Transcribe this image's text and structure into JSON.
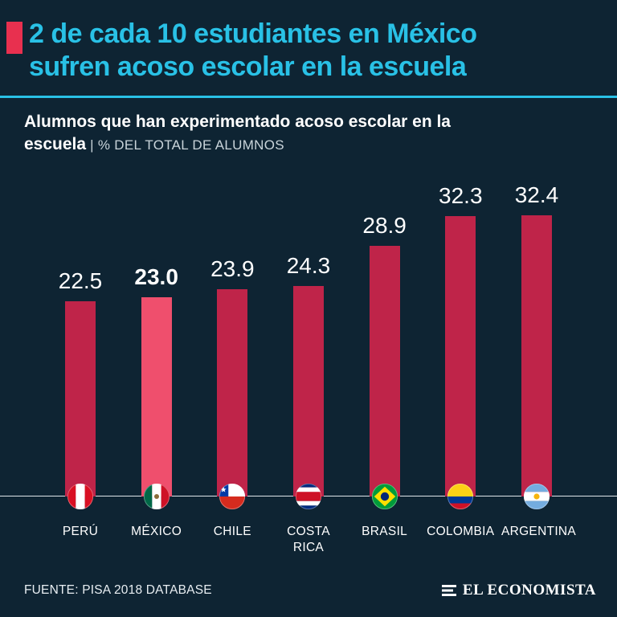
{
  "header": {
    "title": "2 de cada 10 estudiantes en México\nsufren acoso escolar en la escuela",
    "subtitle_bold": "Alumnos que han experimentado acoso escolar en la\nescuela",
    "subtitle_sep": " | ",
    "subtitle_light": "% DEL TOTAL DE ALUMNOS",
    "accent_color": "#29c1e6",
    "bullet_color": "#e8304f"
  },
  "chart_data": {
    "type": "bar",
    "title": "Alumnos que han experimentado acoso escolar en la escuela",
    "ylabel": "% del total de alumnos",
    "categories": [
      "PERÚ",
      "MÉXICO",
      "CHILE",
      "COSTA RICA",
      "BRASIL",
      "COLOMBIA",
      "ARGENTINA"
    ],
    "values": [
      22.5,
      23.0,
      23.9,
      24.3,
      28.9,
      32.3,
      32.4
    ],
    "value_labels": [
      "22.5",
      "23.0",
      "23.9",
      "24.3",
      "28.9",
      "32.3",
      "32.4"
    ],
    "highlighted_index": 1,
    "highlighted_category": "MÉXICO",
    "flags": [
      "peru-flag-icon",
      "mexico-flag-icon",
      "chile-flag-icon",
      "costa-rica-flag-icon",
      "brasil-flag-icon",
      "colombia-flag-icon",
      "argentina-flag-icon"
    ],
    "bar_color": "#bf2449",
    "highlight_bar_color": "#ef4f6d",
    "ylim": [
      0,
      34
    ],
    "grid": false,
    "legend_position": "none"
  },
  "footer": {
    "source": "FUENTE: PISA 2018 DATABASE",
    "brand": "EL ECONOMISTA"
  }
}
